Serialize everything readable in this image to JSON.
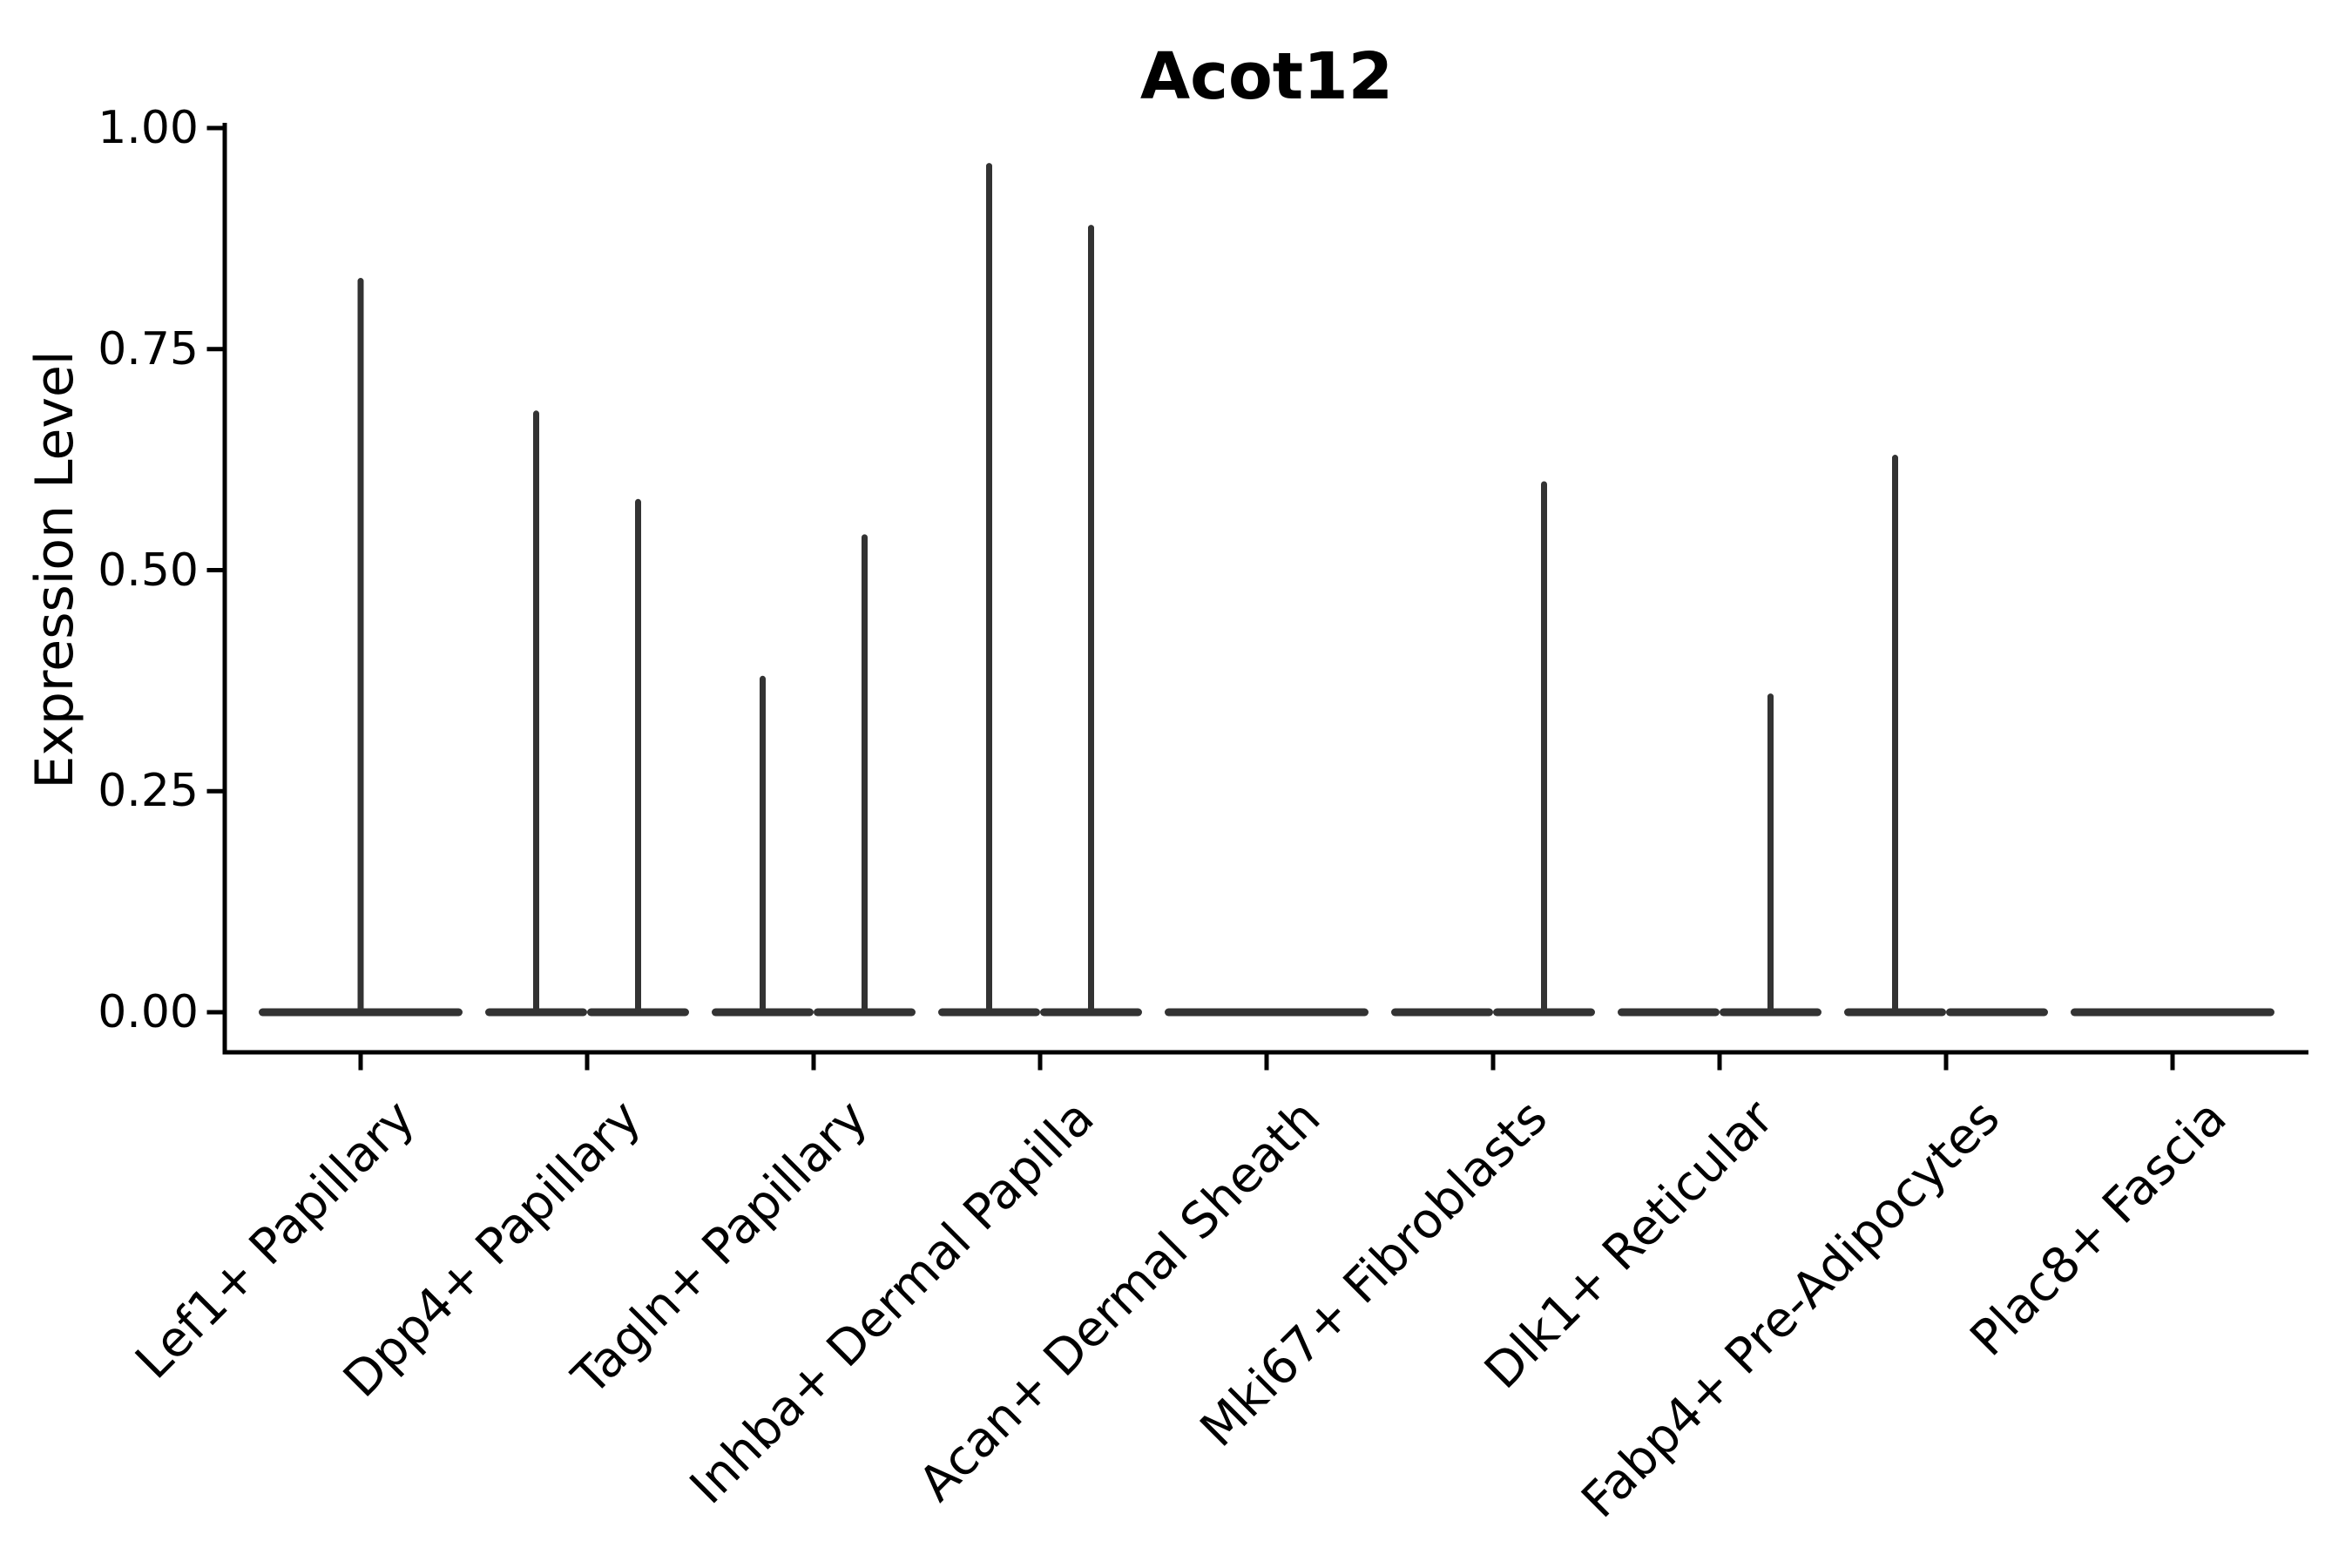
{
  "title": "Acot12",
  "ylabel": "Expression Level",
  "colors": {
    "violin": "#333333",
    "axis": "#000000",
    "text": "#000000",
    "background": "#ffffff"
  },
  "chart_data": {
    "type": "violin",
    "title": "Acot12",
    "xlabel": "",
    "ylabel": "Expression Level",
    "ylim": [
      0.0,
      1.0
    ],
    "xlim": [
      -0.6,
      8.6
    ],
    "grid": false,
    "legend": null,
    "x_tick_label_rotation_deg": 45,
    "y_ticks": [
      0.0,
      0.25,
      0.5,
      0.75,
      1.0
    ],
    "y_tick_labels": [
      "0.00",
      "0.25",
      "0.50",
      "0.75",
      "1.00"
    ],
    "categories": [
      "Lef1+ Papillary",
      "Dpp4+ Papillary",
      "Tagln+ Papillary",
      "Inhba+ Dermal Papilla",
      "Acan+ Dermal Sheath",
      "Mki67+ Fibroblasts",
      "Dlk1+ Reticular",
      "Fabp4+ Pre-Adipocytes",
      "Plac8+ Fascia"
    ],
    "violins": [
      {
        "category_index": 0,
        "category": "Lef1+ Papillary",
        "offset": 0,
        "width": 0.9,
        "baseline": 0.0,
        "max_expression": 0.83
      },
      {
        "category_index": 1,
        "category": "Dpp4+ Papillary",
        "offset": -0.225,
        "width": 0.45,
        "baseline": 0.0,
        "max_expression": 0.68
      },
      {
        "category_index": 1,
        "category": "Dpp4+ Papillary",
        "offset": 0.225,
        "width": 0.45,
        "baseline": 0.0,
        "max_expression": 0.58
      },
      {
        "category_index": 2,
        "category": "Tagln+ Papillary",
        "offset": -0.225,
        "width": 0.45,
        "baseline": 0.0,
        "max_expression": 0.38
      },
      {
        "category_index": 2,
        "category": "Tagln+ Papillary",
        "offset": 0.225,
        "width": 0.45,
        "baseline": 0.0,
        "max_expression": 0.54
      },
      {
        "category_index": 3,
        "category": "Inhba+ Dermal Papilla",
        "offset": -0.225,
        "width": 0.45,
        "baseline": 0.0,
        "max_expression": 0.96
      },
      {
        "category_index": 3,
        "category": "Inhba+ Dermal Papilla",
        "offset": 0.225,
        "width": 0.45,
        "baseline": 0.0,
        "max_expression": 0.89
      },
      {
        "category_index": 4,
        "category": "Acan+ Dermal Sheath",
        "offset": 0,
        "width": 0.9,
        "baseline": 0.0,
        "max_expression": 0.0
      },
      {
        "category_index": 5,
        "category": "Mki67+ Fibroblasts",
        "offset": -0.225,
        "width": 0.45,
        "baseline": 0.0,
        "max_expression": 0.0
      },
      {
        "category_index": 5,
        "category": "Mki67+ Fibroblasts",
        "offset": 0.225,
        "width": 0.45,
        "baseline": 0.0,
        "max_expression": 0.6
      },
      {
        "category_index": 6,
        "category": "Dlk1+ Reticular",
        "offset": -0.225,
        "width": 0.45,
        "baseline": 0.0,
        "max_expression": 0.0
      },
      {
        "category_index": 6,
        "category": "Dlk1+ Reticular",
        "offset": 0.225,
        "width": 0.45,
        "baseline": 0.0,
        "max_expression": 0.36
      },
      {
        "category_index": 7,
        "category": "Fabp4+ Pre-Adipocytes",
        "offset": -0.225,
        "width": 0.45,
        "baseline": 0.0,
        "max_expression": 0.63
      },
      {
        "category_index": 7,
        "category": "Fabp4+ Pre-Adipocytes",
        "offset": 0.225,
        "width": 0.45,
        "baseline": 0.0,
        "max_expression": 0.0
      },
      {
        "category_index": 8,
        "category": "Plac8+ Fascia",
        "offset": 0,
        "width": 0.9,
        "baseline": 0.0,
        "max_expression": 0.0
      }
    ]
  }
}
